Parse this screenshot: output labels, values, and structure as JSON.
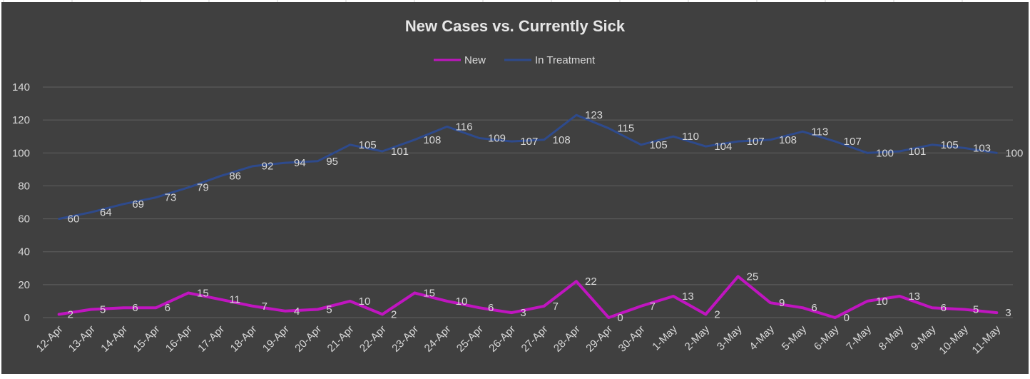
{
  "chart_data": {
    "type": "line",
    "title": "New Cases vs. Currently Sick",
    "xlabel": "",
    "ylabel": "",
    "ylim": [
      0,
      140
    ],
    "yticks": [
      0,
      20,
      40,
      60,
      80,
      100,
      120,
      140
    ],
    "grid": true,
    "legend_position": "top",
    "categories": [
      "12-Apr",
      "13-Apr",
      "14-Apr",
      "15-Apr",
      "16-Apr",
      "17-Apr",
      "18-Apr",
      "19-Apr",
      "20-Apr",
      "21-Apr",
      "22-Apr",
      "23-Apr",
      "24-Apr",
      "25-Apr",
      "26-Apr",
      "27-Apr",
      "28-Apr",
      "29-Apr",
      "30-Apr",
      "1-May",
      "2-May",
      "3-May",
      "4-May",
      "5-May",
      "6-May",
      "7-May",
      "8-May",
      "9-May",
      "10-May",
      "11-May"
    ],
    "series": [
      {
        "name": "New",
        "color": "#c015c0",
        "values": [
          2,
          5,
          6,
          6,
          15,
          11,
          7,
          4,
          5,
          10,
          2,
          15,
          10,
          6,
          3,
          7,
          22,
          0,
          7,
          13,
          2,
          25,
          9,
          6,
          0,
          10,
          13,
          6,
          5,
          3
        ]
      },
      {
        "name": "In Treatment",
        "color": "#2e4a8c",
        "values": [
          60,
          64,
          69,
          73,
          79,
          86,
          92,
          94,
          95,
          105,
          101,
          108,
          116,
          109,
          107,
          108,
          123,
          115,
          105,
          110,
          104,
          107,
          108,
          113,
          107,
          100,
          101,
          105,
          103,
          100
        ]
      }
    ]
  },
  "colors": {
    "background": "#404040",
    "gridline": "#5f5f5f",
    "text": "#d9d9d9",
    "title": "#e6e6e6"
  }
}
